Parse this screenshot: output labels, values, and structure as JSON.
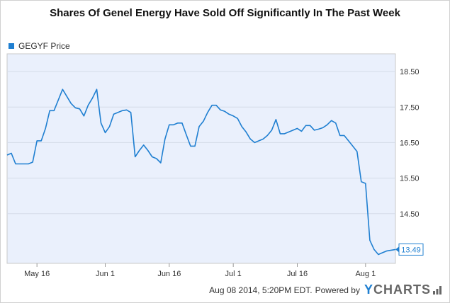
{
  "chart_data": {
    "type": "line",
    "title": "Shares Of Genel Energy Have Sold Off Significantly In The Past Week",
    "legend_position": "top-left",
    "grid": true,
    "series": [
      {
        "name": "GEGYF Price",
        "color": "#1f7fd1",
        "last_value_label": "13.49",
        "x": [
          "2014-05-09",
          "2014-05-10",
          "2014-05-11",
          "2014-05-12",
          "2014-05-13",
          "2014-05-14",
          "2014-05-15",
          "2014-05-16",
          "2014-05-17",
          "2014-05-18",
          "2014-05-19",
          "2014-05-20",
          "2014-05-21",
          "2014-05-22",
          "2014-05-23",
          "2014-05-24",
          "2014-05-25",
          "2014-05-26",
          "2014-05-27",
          "2014-05-28",
          "2014-05-29",
          "2014-05-30",
          "2014-05-31",
          "2014-06-01",
          "2014-06-02",
          "2014-06-03",
          "2014-06-04",
          "2014-06-05",
          "2014-06-06",
          "2014-06-07",
          "2014-06-08",
          "2014-06-09",
          "2014-06-10",
          "2014-06-11",
          "2014-06-12",
          "2014-06-13",
          "2014-06-14",
          "2014-06-15",
          "2014-06-16",
          "2014-06-17",
          "2014-06-18",
          "2014-06-19",
          "2014-06-20",
          "2014-06-21",
          "2014-06-22",
          "2014-06-23",
          "2014-06-24",
          "2014-06-25",
          "2014-06-26",
          "2014-06-27",
          "2014-06-28",
          "2014-06-29",
          "2014-06-30",
          "2014-07-01",
          "2014-07-02",
          "2014-07-03",
          "2014-07-04",
          "2014-07-05",
          "2014-07-06",
          "2014-07-07",
          "2014-07-08",
          "2014-07-09",
          "2014-07-10",
          "2014-07-11",
          "2014-07-12",
          "2014-07-13",
          "2014-07-14",
          "2014-07-15",
          "2014-07-16",
          "2014-07-17",
          "2014-07-18",
          "2014-07-19",
          "2014-07-20",
          "2014-07-21",
          "2014-07-22",
          "2014-07-23",
          "2014-07-24",
          "2014-07-25",
          "2014-07-26",
          "2014-07-27",
          "2014-07-28",
          "2014-07-29",
          "2014-07-30",
          "2014-07-31",
          "2014-08-01",
          "2014-08-02",
          "2014-08-03",
          "2014-08-04",
          "2014-08-05",
          "2014-08-06",
          "2014-08-07",
          "2014-08-08"
        ],
        "values": [
          16.15,
          16.2,
          15.9,
          15.9,
          15.9,
          15.9,
          15.95,
          16.55,
          16.55,
          16.9,
          17.4,
          17.4,
          17.7,
          18.0,
          17.8,
          17.6,
          17.48,
          17.45,
          17.25,
          17.55,
          17.75,
          18.0,
          17.05,
          16.78,
          16.95,
          17.3,
          17.35,
          17.4,
          17.42,
          17.35,
          16.1,
          16.28,
          16.43,
          16.28,
          16.1,
          16.05,
          15.93,
          16.6,
          17.0,
          17.0,
          17.05,
          17.05,
          16.72,
          16.4,
          16.4,
          16.95,
          17.1,
          17.35,
          17.55,
          17.55,
          17.42,
          17.38,
          17.3,
          17.25,
          17.18,
          16.95,
          16.8,
          16.6,
          16.5,
          16.55,
          16.6,
          16.7,
          16.85,
          17.15,
          16.75,
          16.75,
          16.8,
          16.85,
          16.9,
          16.82,
          16.98,
          16.98,
          16.85,
          16.88,
          16.92,
          17.0,
          17.12,
          17.05,
          16.7,
          16.7,
          16.55,
          16.4,
          16.25,
          15.4,
          15.35,
          13.75,
          13.49,
          13.35,
          13.4,
          13.45,
          13.47,
          13.49
        ]
      }
    ],
    "yticks": [
      "18.50",
      "17.50",
      "16.50",
      "15.50",
      "14.50"
    ],
    "ylim": [
      13.1,
      19.0
    ],
    "xticks": [
      {
        "label": "May 16",
        "date": "2014-05-16"
      },
      {
        "label": "Jun 1",
        "date": "2014-06-01"
      },
      {
        "label": "Jun 16",
        "date": "2014-06-16"
      },
      {
        "label": "Jul 1",
        "date": "2014-07-01"
      },
      {
        "label": "Jul 16",
        "date": "2014-07-16"
      },
      {
        "label": "Aug 1",
        "date": "2014-08-01"
      }
    ]
  },
  "footer": {
    "timestamp": "Aug 08 2014, 5:20PM EDT.",
    "powered_by": "Powered by",
    "brand_y": "Y",
    "brand_rest": "CHARTS"
  }
}
